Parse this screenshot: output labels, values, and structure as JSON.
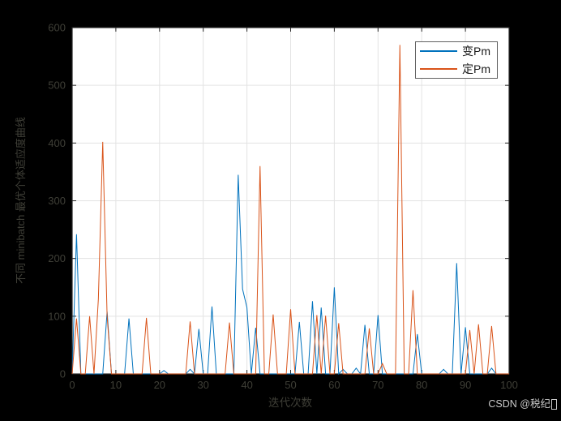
{
  "figure": {
    "background": "#000000",
    "plot_background": "#ffffff",
    "grid_color": "#e3e3e3",
    "axis_color": "#262626",
    "tick_label_color": "#3f3f37",
    "watermark": "CSDN @税纪"
  },
  "chart_data": {
    "type": "line",
    "title": "",
    "xlabel": "迭代次数",
    "ylabel": "不同 minibatch 最优个体适应度曲线",
    "xlim": [
      0,
      100
    ],
    "ylim": [
      0,
      600
    ],
    "xticks": [
      0,
      10,
      20,
      30,
      40,
      50,
      60,
      70,
      80,
      90,
      100
    ],
    "yticks": [
      0,
      100,
      200,
      300,
      400,
      500,
      600
    ],
    "grid": true,
    "legend_position": "top-right",
    "x": [
      0,
      1,
      2,
      3,
      4,
      5,
      6,
      7,
      8,
      9,
      10,
      11,
      12,
      13,
      14,
      15,
      16,
      17,
      18,
      19,
      20,
      21,
      22,
      23,
      24,
      25,
      26,
      27,
      28,
      29,
      30,
      31,
      32,
      33,
      34,
      35,
      36,
      37,
      38,
      39,
      40,
      41,
      42,
      43,
      44,
      45,
      46,
      47,
      48,
      49,
      50,
      51,
      52,
      53,
      54,
      55,
      56,
      57,
      58,
      59,
      60,
      61,
      62,
      63,
      64,
      65,
      66,
      67,
      68,
      69,
      70,
      71,
      72,
      73,
      74,
      75,
      76,
      77,
      78,
      79,
      80,
      81,
      82,
      83,
      84,
      85,
      86,
      87,
      88,
      89,
      90,
      91,
      92,
      93,
      94,
      95,
      96,
      97,
      98,
      99,
      100
    ],
    "series": [
      {
        "name": "变Pm",
        "color": "#0072BD",
        "values": [
          0,
          242,
          0,
          0,
          0,
          0,
          0,
          0,
          108,
          0,
          0,
          0,
          0,
          96,
          0,
          0,
          0,
          0,
          0,
          0,
          0,
          6,
          0,
          0,
          0,
          0,
          0,
          8,
          0,
          78,
          0,
          0,
          117,
          0,
          0,
          0,
          0,
          0,
          345,
          147,
          115,
          0,
          80,
          0,
          0,
          0,
          0,
          0,
          0,
          0,
          0,
          0,
          90,
          0,
          0,
          126,
          0,
          115,
          0,
          0,
          150,
          0,
          8,
          0,
          0,
          10,
          0,
          85,
          0,
          0,
          102,
          0,
          0,
          0,
          0,
          0,
          0,
          0,
          0,
          69,
          0,
          0,
          0,
          0,
          0,
          8,
          0,
          0,
          192,
          0,
          81,
          0,
          0,
          0,
          0,
          0,
          10,
          0,
          0,
          0,
          0
        ]
      },
      {
        "name": "定Pm",
        "color": "#D95319",
        "values": [
          0,
          96,
          0,
          0,
          100,
          0,
          130,
          402,
          100,
          0,
          0,
          0,
          0,
          0,
          0,
          0,
          0,
          97,
          0,
          0,
          0,
          0,
          0,
          0,
          0,
          0,
          0,
          91,
          0,
          0,
          0,
          0,
          0,
          0,
          0,
          0,
          89,
          0,
          0,
          0,
          0,
          0,
          0,
          360,
          0,
          0,
          103,
          0,
          0,
          0,
          112,
          0,
          0,
          0,
          0,
          0,
          102,
          0,
          101,
          0,
          0,
          88,
          0,
          0,
          0,
          0,
          0,
          0,
          79,
          0,
          0,
          18,
          0,
          0,
          0,
          570,
          0,
          0,
          145,
          0,
          0,
          0,
          0,
          0,
          0,
          0,
          0,
          0,
          0,
          0,
          0,
          76,
          0,
          86,
          0,
          0,
          83,
          0,
          0,
          0,
          0
        ]
      }
    ]
  }
}
